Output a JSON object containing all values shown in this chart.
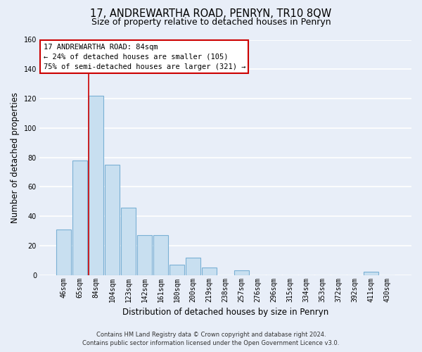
{
  "title": "17, ANDREWARTHA ROAD, PENRYN, TR10 8QW",
  "subtitle": "Size of property relative to detached houses in Penryn",
  "xlabel": "Distribution of detached houses by size in Penryn",
  "ylabel": "Number of detached properties",
  "bar_labels": [
    "46sqm",
    "65sqm",
    "84sqm",
    "104sqm",
    "123sqm",
    "142sqm",
    "161sqm",
    "180sqm",
    "200sqm",
    "219sqm",
    "238sqm",
    "257sqm",
    "276sqm",
    "296sqm",
    "315sqm",
    "334sqm",
    "353sqm",
    "372sqm",
    "392sqm",
    "411sqm",
    "430sqm"
  ],
  "bar_values": [
    31,
    78,
    122,
    75,
    46,
    27,
    27,
    7,
    12,
    5,
    0,
    3,
    0,
    0,
    0,
    0,
    0,
    0,
    0,
    2,
    0
  ],
  "bar_color": "#c8dff0",
  "bar_edge_color": "#7ab0d4",
  "highlight_index": 2,
  "highlight_line_color": "#cc0000",
  "ylim": [
    0,
    160
  ],
  "yticks": [
    0,
    20,
    40,
    60,
    80,
    100,
    120,
    140,
    160
  ],
  "annotation_title": "17 ANDREWARTHA ROAD: 84sqm",
  "annotation_line1": "← 24% of detached houses are smaller (105)",
  "annotation_line2": "75% of semi-detached houses are larger (321) →",
  "annotation_box_color": "#ffffff",
  "annotation_border_color": "#cc0000",
  "footer_line1": "Contains HM Land Registry data © Crown copyright and database right 2024.",
  "footer_line2": "Contains public sector information licensed under the Open Government Licence v3.0.",
  "bg_color": "#e8eef8",
  "grid_color": "#ffffff",
  "title_fontsize": 10.5,
  "subtitle_fontsize": 9,
  "label_fontsize": 8.5,
  "tick_fontsize": 7,
  "footer_fontsize": 6,
  "ann_fontsize": 7.5
}
